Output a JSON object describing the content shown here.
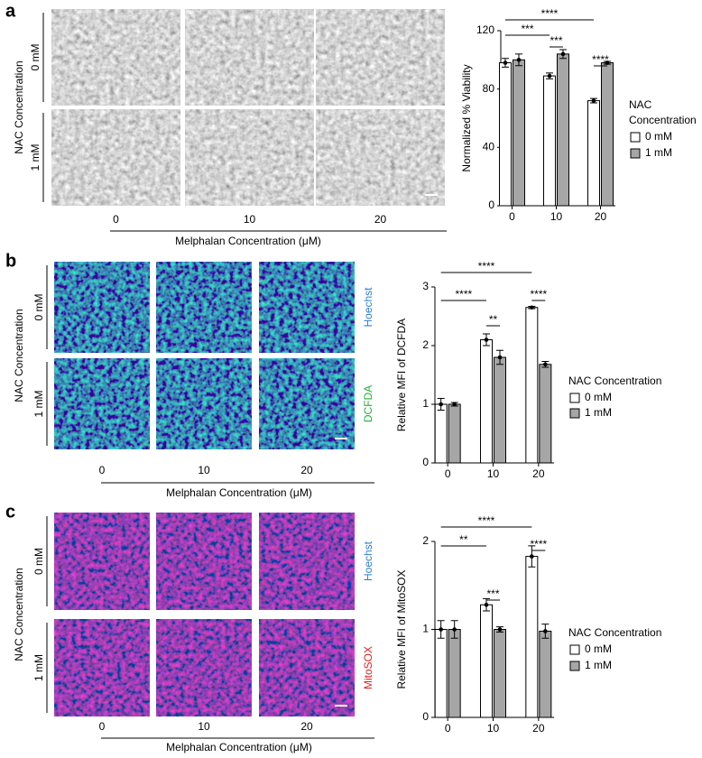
{
  "panels": [
    {
      "label": "a",
      "row_title": "NAC Concentration",
      "rows": [
        "0 mM",
        "1 mM"
      ],
      "columns": [
        "0",
        "10",
        "20"
      ],
      "x_title": "Melphalan Concentration (μM)"
    },
    {
      "label": "b",
      "row_title": "NAC Concentration",
      "rows": [
        "0 mM",
        "1 mM"
      ],
      "columns": [
        "0",
        "10",
        "20"
      ],
      "x_title": "Melphalan Concentration (μM)",
      "stains": [
        {
          "label": "Hoechst",
          "color": "#2f7fd0"
        },
        {
          "label": "DCFDA",
          "color": "#22b03a"
        }
      ]
    },
    {
      "label": "c",
      "row_title": "NAC Concentration",
      "rows": [
        "0 mM",
        "1 mM"
      ],
      "columns": [
        "0",
        "10",
        "20"
      ],
      "x_title": "Melphalan Concentration (μM)",
      "stains": [
        {
          "label": "Hoechst",
          "color": "#2f7fd0"
        },
        {
          "label": "MitoSOX",
          "color": "#e02020"
        }
      ]
    }
  ],
  "chart_data": [
    {
      "type": "bar",
      "y_label": "Normalized % Viability",
      "categories": [
        "0",
        "10",
        "20"
      ],
      "series": [
        {
          "name": "0 mM",
          "color": "#ffffff",
          "values": [
            98,
            89,
            72
          ],
          "errors": [
            3,
            2,
            1.5
          ]
        },
        {
          "name": "1 mM",
          "color": "#a6a6a6",
          "values": [
            100,
            104,
            98
          ],
          "errors": [
            4,
            3,
            1
          ]
        }
      ],
      "ylim": [
        0,
        120
      ],
      "yticks": [
        0,
        40,
        80,
        120
      ],
      "legend_title": "NAC Concentration",
      "annotations": [
        "****",
        "***",
        "***",
        "****"
      ]
    },
    {
      "type": "bar",
      "y_label": "Relative MFI of DCFDA",
      "categories": [
        "0",
        "10",
        "20"
      ],
      "series": [
        {
          "name": "0 mM",
          "color": "#ffffff",
          "values": [
            1.0,
            2.1,
            2.65
          ],
          "errors": [
            0.1,
            0.1,
            0.02
          ]
        },
        {
          "name": "1 mM",
          "color": "#a6a6a6",
          "values": [
            1.0,
            1.8,
            1.68
          ],
          "errors": [
            0.03,
            0.12,
            0.05
          ]
        }
      ],
      "ylim": [
        0,
        3
      ],
      "yticks": [
        0,
        1,
        2,
        3
      ],
      "legend_title": "NAC Concentration",
      "annotations": [
        "****",
        "****",
        "**",
        "****"
      ]
    },
    {
      "type": "bar",
      "y_label": "Relative MFI of MitoSOX",
      "categories": [
        "0",
        "10",
        "20"
      ],
      "series": [
        {
          "name": "0 mM",
          "color": "#ffffff",
          "values": [
            1.0,
            1.28,
            1.83
          ],
          "errors": [
            0.1,
            0.07,
            0.12
          ]
        },
        {
          "name": "1 mM",
          "color": "#a6a6a6",
          "values": [
            1.0,
            1.0,
            0.98
          ],
          "errors": [
            0.1,
            0.03,
            0.08
          ]
        }
      ],
      "ylim": [
        0,
        2
      ],
      "yticks": [
        0,
        1,
        2
      ],
      "legend_title": "NAC Concentration",
      "annotations": [
        "****",
        "**",
        "***",
        "****"
      ]
    }
  ]
}
